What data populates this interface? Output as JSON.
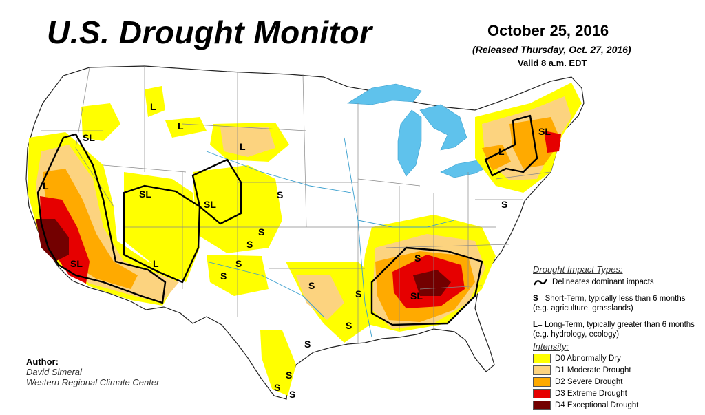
{
  "header": {
    "title": "U.S. Drought Monitor",
    "date": "October 25, 2016",
    "released": "(Released Thursday, Oct. 27, 2016)",
    "valid": "Valid 8 a.m. EDT"
  },
  "legend": {
    "impact_title": "Drought Impact Types:",
    "delineates": "Delineates dominant impacts",
    "short_term_symbol": "S",
    "short_term_text": "= Short-Term, typically less than 6 months (e.g. agriculture, grasslands)",
    "long_term_symbol": "L",
    "long_term_text": "= Long-Term, typically greater than 6 months (e.g. hydrology, ecology)",
    "intensity_title": "Intensity:",
    "intensity": [
      {
        "label": "D0 Abnormally Dry",
        "color": "#ffff00"
      },
      {
        "label": "D1 Moderate Drought",
        "color": "#fcd37f"
      },
      {
        "label": "D2 Severe Drought",
        "color": "#ffaa00"
      },
      {
        "label": "D3 Extreme Drought",
        "color": "#e60000"
      },
      {
        "label": "D4 Exceptional Drought",
        "color": "#730000"
      }
    ]
  },
  "author": {
    "label": "Author:",
    "name": "David Simeral",
    "org": "Western Regional Climate Center"
  },
  "map_labels": {
    "sl_nw": "SL",
    "l_mt": "L",
    "l_mt2": "L",
    "l_wy": "L",
    "l_ca": "L",
    "sl_nv": "SL",
    "sl_ut": "SL",
    "sl_co": "SL",
    "l_az": "L",
    "sl_ca": "SL",
    "s_ks": "S",
    "s_ks2": "S",
    "s_ks3": "S",
    "s_nm": "S",
    "s_nm2": "S",
    "s_ok": "S",
    "s_tx": "S",
    "s_tx2": "S",
    "s_tx3": "S",
    "s_tx4": "S",
    "s_tx5": "S",
    "s_la": "S",
    "s_tn": "S",
    "sl_se": "SL",
    "l_ny": "L",
    "sl_ne": "SL",
    "s_md": "S"
  }
}
